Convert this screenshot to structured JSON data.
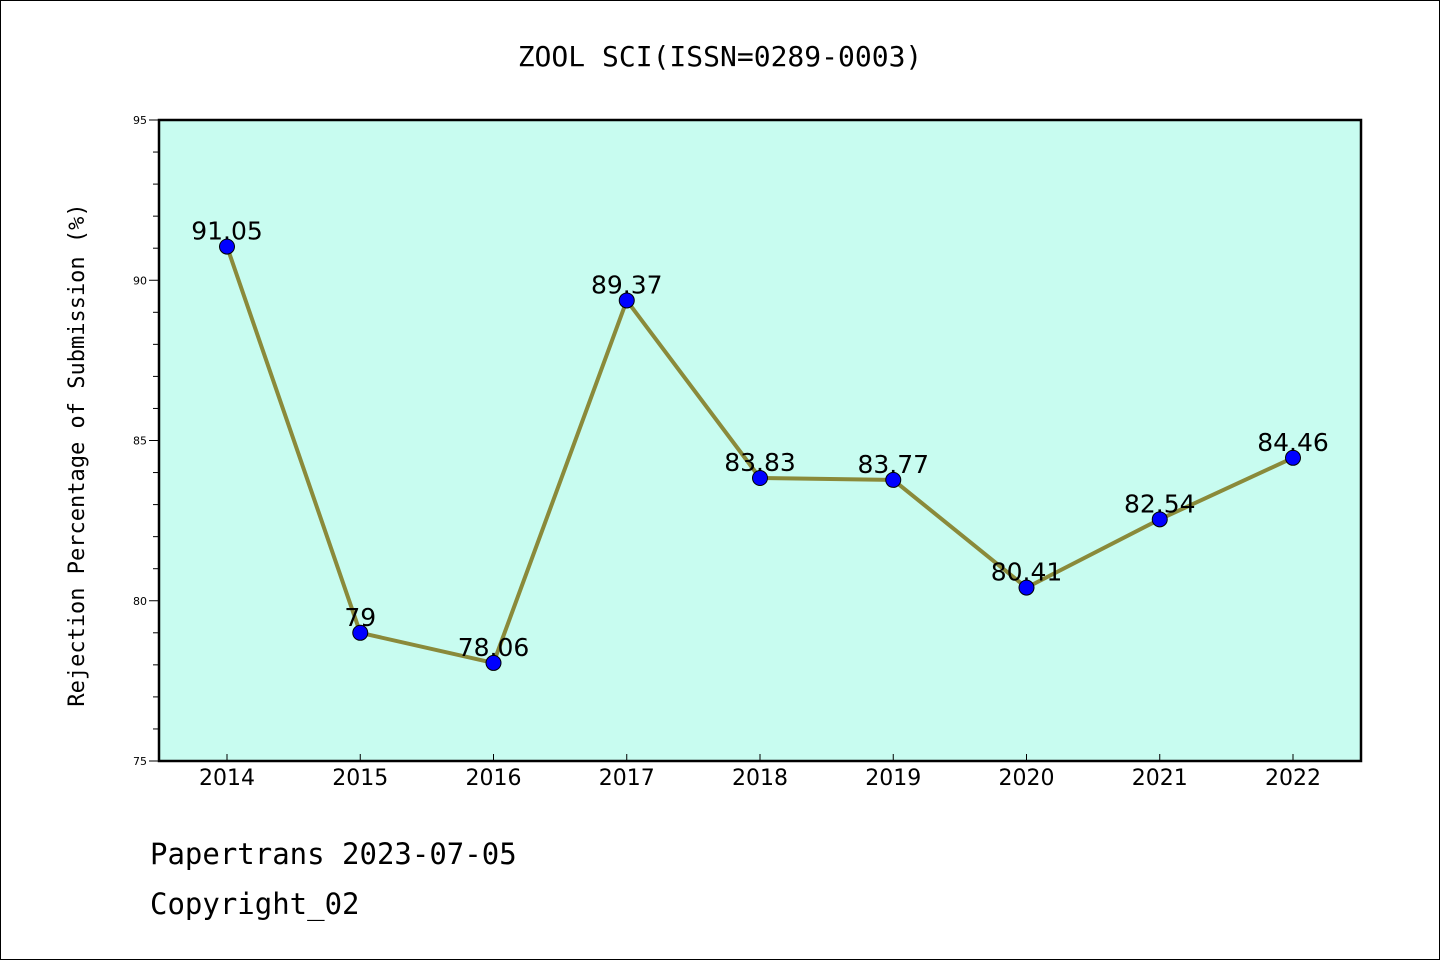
{
  "chart_data": {
    "type": "line",
    "title": "ZOOL SCI(ISSN=0289-0003)",
    "ylabel": "Rejection Percentage of Submission (%)",
    "xlabel": "",
    "categories": [
      "2014",
      "2015",
      "2016",
      "2017",
      "2018",
      "2019",
      "2020",
      "2021",
      "2022"
    ],
    "series": [
      {
        "values": [
          91.05,
          79,
          78.06,
          89.37,
          83.83,
          83.77,
          80.41,
          82.54,
          84.46
        ],
        "labels": [
          "91.05",
          "79",
          "78.06",
          "89.37",
          "83.83",
          "83.77",
          "80.41",
          "82.54",
          "84.46"
        ]
      }
    ],
    "ylim": [
      75,
      95
    ],
    "yticks": [
      "75",
      "80",
      "85",
      "90",
      "95"
    ],
    "grid": false,
    "colors": {
      "plot_background": "#c8fcf0",
      "line": "#8a8a3a",
      "marker": "#0000ff"
    }
  },
  "footer": {
    "line1": "Papertrans 2023-07-05",
    "line2": "Copyright_02"
  }
}
